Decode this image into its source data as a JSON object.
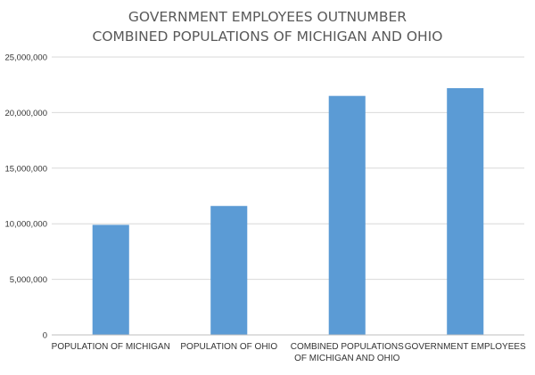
{
  "chart_data": {
    "type": "bar",
    "title_lines": [
      "GOVERNMENT EMPLOYEES OUTNUMBER",
      "COMBINED POPULATIONS OF MICHIGAN AND OHIO"
    ],
    "categories": [
      [
        "POPULATION OF MICHIGAN"
      ],
      [
        "POPULATION OF OHIO"
      ],
      [
        "COMBINED POPULATIONS",
        "OF MICHIGAN AND OHIO"
      ],
      [
        "GOVERNMENT EMPLOYEES"
      ]
    ],
    "values": [
      9900000,
      11600000,
      21500000,
      22200000
    ],
    "ylim": [
      0,
      25000000
    ],
    "yticks": [
      0,
      5000000,
      10000000,
      15000000,
      20000000,
      25000000
    ],
    "ytick_labels": [
      "0",
      "5,000,000",
      "10,000,000",
      "15,000,000",
      "20,000,000",
      "25,000,000"
    ],
    "grid": true,
    "bar_color": "#5B9BD5",
    "grid_color": "#d9d9d9"
  }
}
